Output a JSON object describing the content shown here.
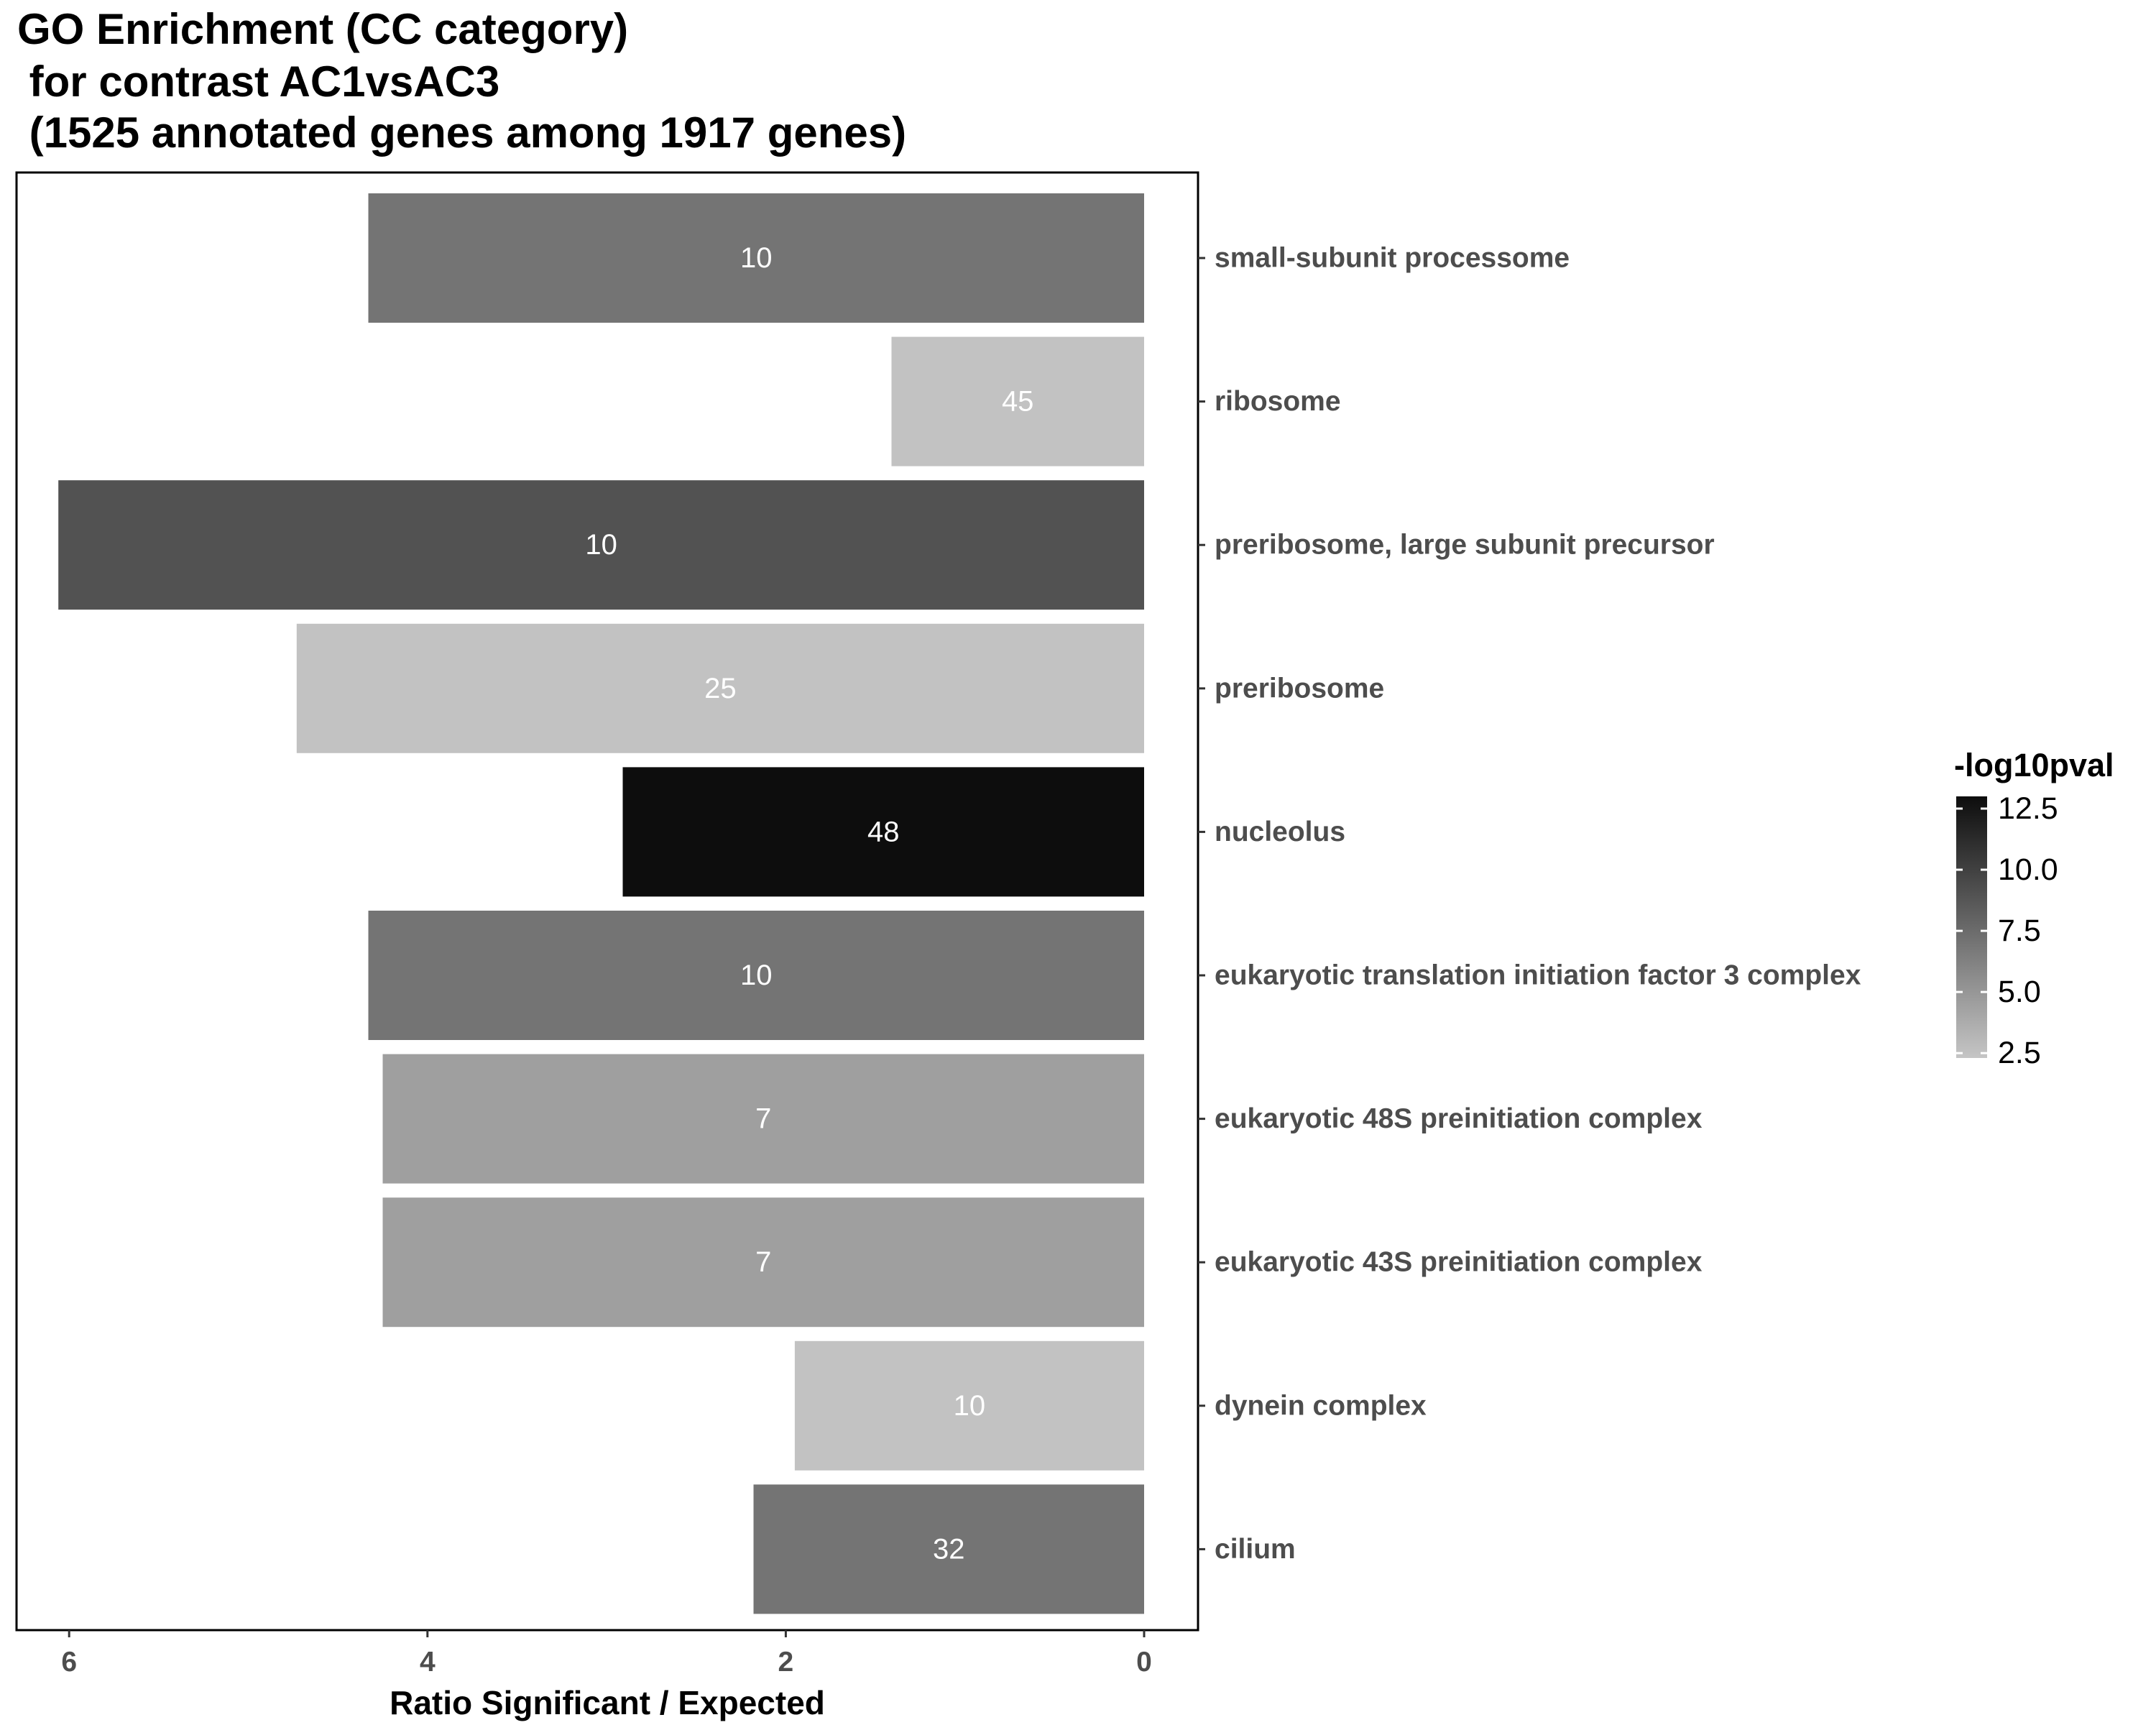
{
  "title_lines": [
    "GO Enrichment (CC category)",
    " for contrast AC1vsAC3",
    " (1525 annotated genes among 1917 genes)"
  ],
  "chart_data": {
    "type": "bar",
    "orientation": "horizontal",
    "x_reversed": true,
    "title": "GO Enrichment (CC category)\n for contrast AC1vsAC3\n (1525 annotated genes among 1917 genes)",
    "xlabel": "Ratio Significant / Expected",
    "ylabel": "",
    "xlim": [
      0,
      6.6
    ],
    "xticks": [
      6,
      4,
      2,
      0
    ],
    "categories": [
      "small-subunit processome",
      "ribosome",
      "preribosome, large subunit precursor",
      "preribosome",
      "nucleolus",
      "eukaryotic translation initiation factor 3 complex",
      "eukaryotic 48S preinitiation complex",
      "eukaryotic 43S preinitiation complex",
      "dynein complex",
      "cilium"
    ],
    "values": [
      4.33,
      1.41,
      6.06,
      4.73,
      2.91,
      4.33,
      4.25,
      4.25,
      1.95,
      2.18
    ],
    "labels": [
      "10",
      "45",
      "10",
      "25",
      "48",
      "10",
      "7",
      "7",
      "10",
      "32"
    ],
    "fill_values": [
      7.0,
      2.5,
      9.0,
      2.5,
      13.0,
      7.0,
      4.5,
      4.5,
      2.5,
      7.0
    ],
    "legend": {
      "title": "-log10pval",
      "position": "right",
      "ticks": [
        "12.5",
        "10.0",
        "7.5",
        "5.0",
        "2.5"
      ],
      "range": [
        2.3,
        13.0
      ],
      "color_low": "#c5c5c5",
      "color_high": "#0d0d0d"
    },
    "grid": false
  }
}
